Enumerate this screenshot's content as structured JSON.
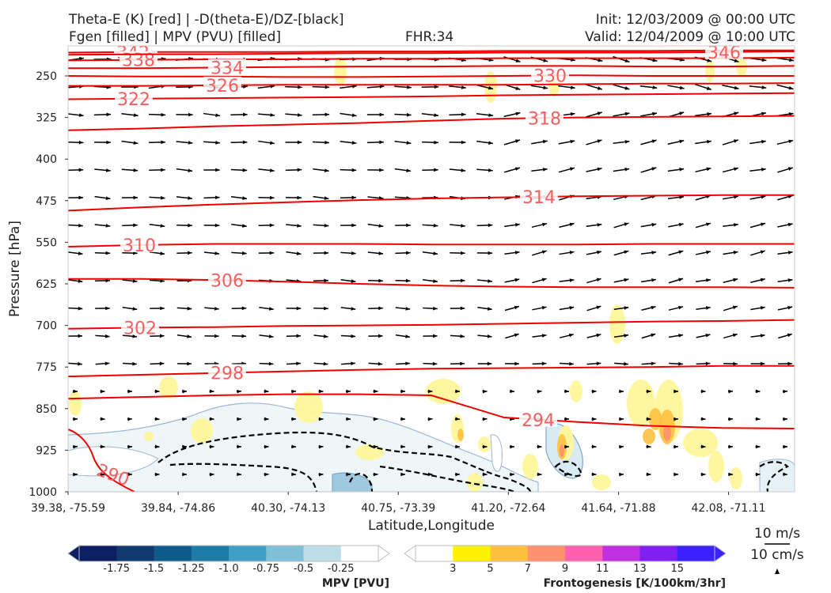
{
  "header": {
    "title_left_1": "Theta-E (K) [red] | -D(theta-E)/DZ-[black]",
    "title_left_2": "Fgen [filled] | MPV (PVU) [filled]",
    "fhr": "FHR:34",
    "init": "Init: 12/03/2009 @ 00:00 UTC",
    "valid": "Valid: 12/04/2009 @ 10:00 UTC"
  },
  "chart_data": {
    "type": "cross-section",
    "xlabel": "Latitude,Longitude",
    "ylabel": "Pressure [hPa]",
    "x_ticks": [
      "39.38, -75.59",
      "39.84, -74.86",
      "40.30, -74.13",
      "40.75, -73.39",
      "41.20, -72.64",
      "41.64, -71.88",
      "42.08, -71.11"
    ],
    "y_ticks": [
      250,
      325,
      400,
      475,
      550,
      625,
      700,
      775,
      850,
      925,
      1000
    ],
    "ylim": [
      1000,
      200
    ],
    "theta_e_contours": [
      {
        "label": "342",
        "values": [
          208,
          207,
          207,
          207,
          206,
          206,
          205,
          205,
          205,
          204,
          204
        ]
      },
      {
        "label": "338",
        "values": [
          222,
          221,
          220,
          220,
          219,
          219,
          218,
          218,
          218,
          218,
          217
        ]
      },
      {
        "label": "346",
        "values": [
          212,
          211,
          211,
          210,
          209,
          209,
          208,
          208,
          208,
          207,
          206
        ]
      },
      {
        "label": "334",
        "values": [
          236,
          236,
          235,
          234,
          233,
          233,
          232,
          232,
          233,
          233,
          232
        ]
      },
      {
        "label": "330",
        "values": [
          250,
          251,
          251,
          252,
          252,
          251,
          250,
          249,
          250,
          250,
          250
        ]
      },
      {
        "label": "326",
        "values": [
          268,
          268,
          267,
          266,
          266,
          266,
          266,
          265,
          264,
          264,
          263
        ]
      },
      {
        "label": "322",
        "values": [
          292,
          291,
          290,
          289,
          288,
          287,
          285,
          284,
          283,
          282,
          281
        ]
      },
      {
        "label": "318",
        "values": [
          348,
          345,
          341,
          338,
          335,
          331,
          327,
          325,
          324,
          323,
          322
        ]
      },
      {
        "label": "314",
        "values": [
          493,
          487,
          482,
          478,
          474,
          471,
          469,
          467,
          466,
          465,
          465
        ]
      },
      {
        "label": "310",
        "values": [
          558,
          555,
          553,
          553,
          553,
          554,
          554,
          554,
          553,
          553,
          553
        ]
      },
      {
        "label": "306",
        "values": [
          616,
          616,
          618,
          621,
          625,
          628,
          630,
          631,
          631,
          631,
          632
        ]
      },
      {
        "label": "302",
        "values": [
          706,
          704,
          703,
          701,
          700,
          699,
          697,
          695,
          693,
          692,
          690
        ]
      },
      {
        "label": "298",
        "values": [
          792,
          789,
          786,
          783,
          780,
          778,
          777,
          776,
          775,
          773,
          773
        ]
      },
      {
        "label": "294",
        "values": [
          832,
          829,
          826,
          824,
          824,
          826,
          866,
          874,
          881,
          885,
          886
        ]
      },
      {
        "label": "290",
        "values": [
          1000,
          1000,
          1000,
          1000,
          1000,
          1000,
          1000,
          1000,
          1000,
          1000,
          1000
        ]
      }
    ],
    "colorbars": [
      {
        "label": "MPV [PVU]",
        "ticks": [
          "-1.75",
          "-1.5",
          "-1.25",
          "-1.0",
          "-0.75",
          "-0.5",
          "-0.25"
        ],
        "colors": [
          "#0b1f63",
          "#10396f",
          "#0e5a8a",
          "#1e7aa7",
          "#3f9ec4",
          "#7fbfd8",
          "#bcdce8",
          "#ffffff"
        ]
      },
      {
        "label": "Frontogenesis [K/100km/3hr]",
        "ticks": [
          "3",
          "5",
          "7",
          "9",
          "11",
          "13",
          "15"
        ],
        "colors": [
          "#ffffff",
          "#fff200",
          "#ffc040",
          "#ff9070",
          "#ff60b0",
          "#c030e0",
          "#7f20f0",
          "#3a22ff"
        ]
      }
    ],
    "wind_scale": {
      "h": "10 m/s",
      "v": "10 cm/s"
    }
  }
}
